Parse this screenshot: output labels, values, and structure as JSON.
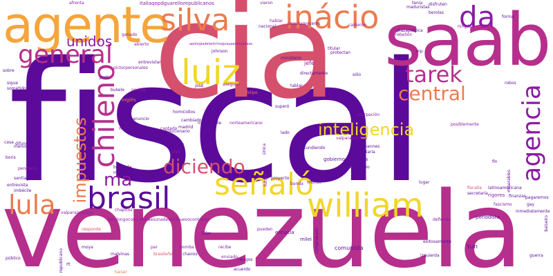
{
  "colors": {
    "background": "#ffffff",
    "palette": [
      "#5c0a9a",
      "#8b1aa4",
      "#b62f8c",
      "#d4506d",
      "#eb7b4f",
      "#f5a53b",
      "#f0d629"
    ]
  },
  "words": {
    "fiscal": "fiscal",
    "venezuela": "venezuela",
    "cia": "cia",
    "saab": "saab",
    "agente": "agente",
    "silva": "silva",
    "inacio": "inácio",
    "da": "da",
    "general": "general",
    "unidos": "unidos",
    "luiz": "luiz",
    "chileno": "chileno",
    "tarek": "tarek",
    "central": "central",
    "agencia": "agencia",
    "impuestos": "impuestos",
    "inteligencia": "inteligencia",
    "diciendo": "diciendo",
    "ma": "ma",
    "brasil": "brasil",
    "william": "william",
    "lula": "lula",
    "senalo": "señaló",
    "jefe": "jefe",
    "tun": "tun",
    "comunista": "comunista",
    "milei": "milei",
    "ennucia": "ennucia",
    "fiscalia": "fiscalía",
    "periodista": "periodista",
    "latinoamericana": "latinoamericana",
    "rigores": "rigores",
    "defiende": "defiende",
    "bomba": "bomba",
    "lider": "líder",
    "recibe": "recibe",
    "chapitos": "chapitos",
    "par": "par",
    "pueden": "pueden",
    "valparaisoplaza": "valparaisoplaza",
    "kastlongocontraloriaesunadebatilnuevo": "kastlongocontraloriaesunadebatilnuevocontosha",
    "italiaqepdguarello": "italiaqepdguarellorepublicanos",
    "apologia": "apologiadelantrinoguayparaisoplaza",
    "plazapublica": "plazapublica",
    "calderon": "calderón",
    "tenian": "tenían",
    "vieron": "vieron",
    "nacional": "nacional",
    "rebelion": "rebelión",
    "titular": "titular",
    "pezuas": "pezuñas",
    "voceros": "voceros",
    "dejamos": "dejamos",
    "hablar": "hablar",
    "protectan": "protectan",
    "ministerio": "ministerio",
    "directamente": "directamente",
    "robos": "robos",
    "sobre": "sobre",
    "trn": "trn",
    "ganado": "ganado",
    "abierto": "abierto",
    "entrevistar": "entrevistar",
    "johnson": "johnson",
    "pictorpersonales": "pictorpersonales",
    "preti": "preti",
    "josé": "josé",
    "asegurö": "aseguró",
    "anunció": "anunció",
    "felipe": "felipe",
    "tablar": "tablar",
    "solo": "sólo",
    "supero": "superó",
    "usurpacion": "usurpación",
    "posiblemente": "posiblemente",
    "tundiendo": "tundiendo",
    "johannes": "johannes",
    "monetaria": "monetaria",
    "valparaisochile": "valparaisochile",
    "gobiernodemierda": "gobiernodemierda",
    "mandatario": "mandatario",
    "segun": "según",
    "proyecto": "proyecto",
    "lugar": "lugar",
    "mundo": "mundo",
    "banda": "banda",
    "futuro": "futuro",
    "unica": "única",
    "lado": "lado",
    "norteamericano": "norteamericano",
    "insightchile": "insightchile",
    "madrid": "madrid",
    "revolucionario": "revolucionario",
    "cambiado": "cambiado",
    "homicidios": "homicidios",
    "anuncio": "anuncio",
    "captado": "captado",
    "kast": "kast",
    "vivir": "vivir",
    "bastante": "bastante",
    "motivo": "motivo",
    "difundida": "difundida",
    "menos": "menos",
    "casa": "casa",
    "boris": "boris",
    "santiago": "santiago",
    "imbecile": "imbécile",
    "entrevista": "entrevista",
    "pendejos": "pendejos",
    "responde": "responde",
    "malvinas": "malvinas",
    "moya": "moya",
    "chairos": "chairos",
    "brasileño": "brasileño",
    "kaiser": "kaiser",
    "acuerdo": "acuerdo",
    "enviado": "enviado",
    "riesgos": "riesgos",
    "mega": "mega",
    "ingles": "inglés",
    "bukele": "bukele",
    "posible": "posible",
    "pretende": "pretende",
    "peon": "peón",
    "rt": "rt",
    "inmediatamente": "inmediatamente",
    "balseiro": "balseiro",
    "guerra": "guerra",
    "fascismo": "fascismo",
    "finanzas": "finanzas",
    "gay": "gay",
    "pagaremos": "pagaremos",
    "miserables": "miserables",
    "forma": "forma",
    "fin": "fin",
    "chat": "chat",
    "ningun": "ningún",
    "sofirmas": "sofirmas",
    "izquierda": "izquierda",
    "exitosamente": "exitosamente",
    "comprobado": "comprobado",
    "mp": "mp",
    "disfruten": "disfruten",
    "berolas": "berolas",
    "maduristas": "maduristas",
    "tenía": "tenía",
    "afrenta": "afrenta",
    "fuerza": "fuerza",
    "hemisferio": "hemisferio",
    "sigue": "sigue",
    "sometidos": "sometidos",
    "republicano": "republicano",
    "sobra": "sobra",
    "publico": "público",
    "secretaria": "secretaría"
  }
}
